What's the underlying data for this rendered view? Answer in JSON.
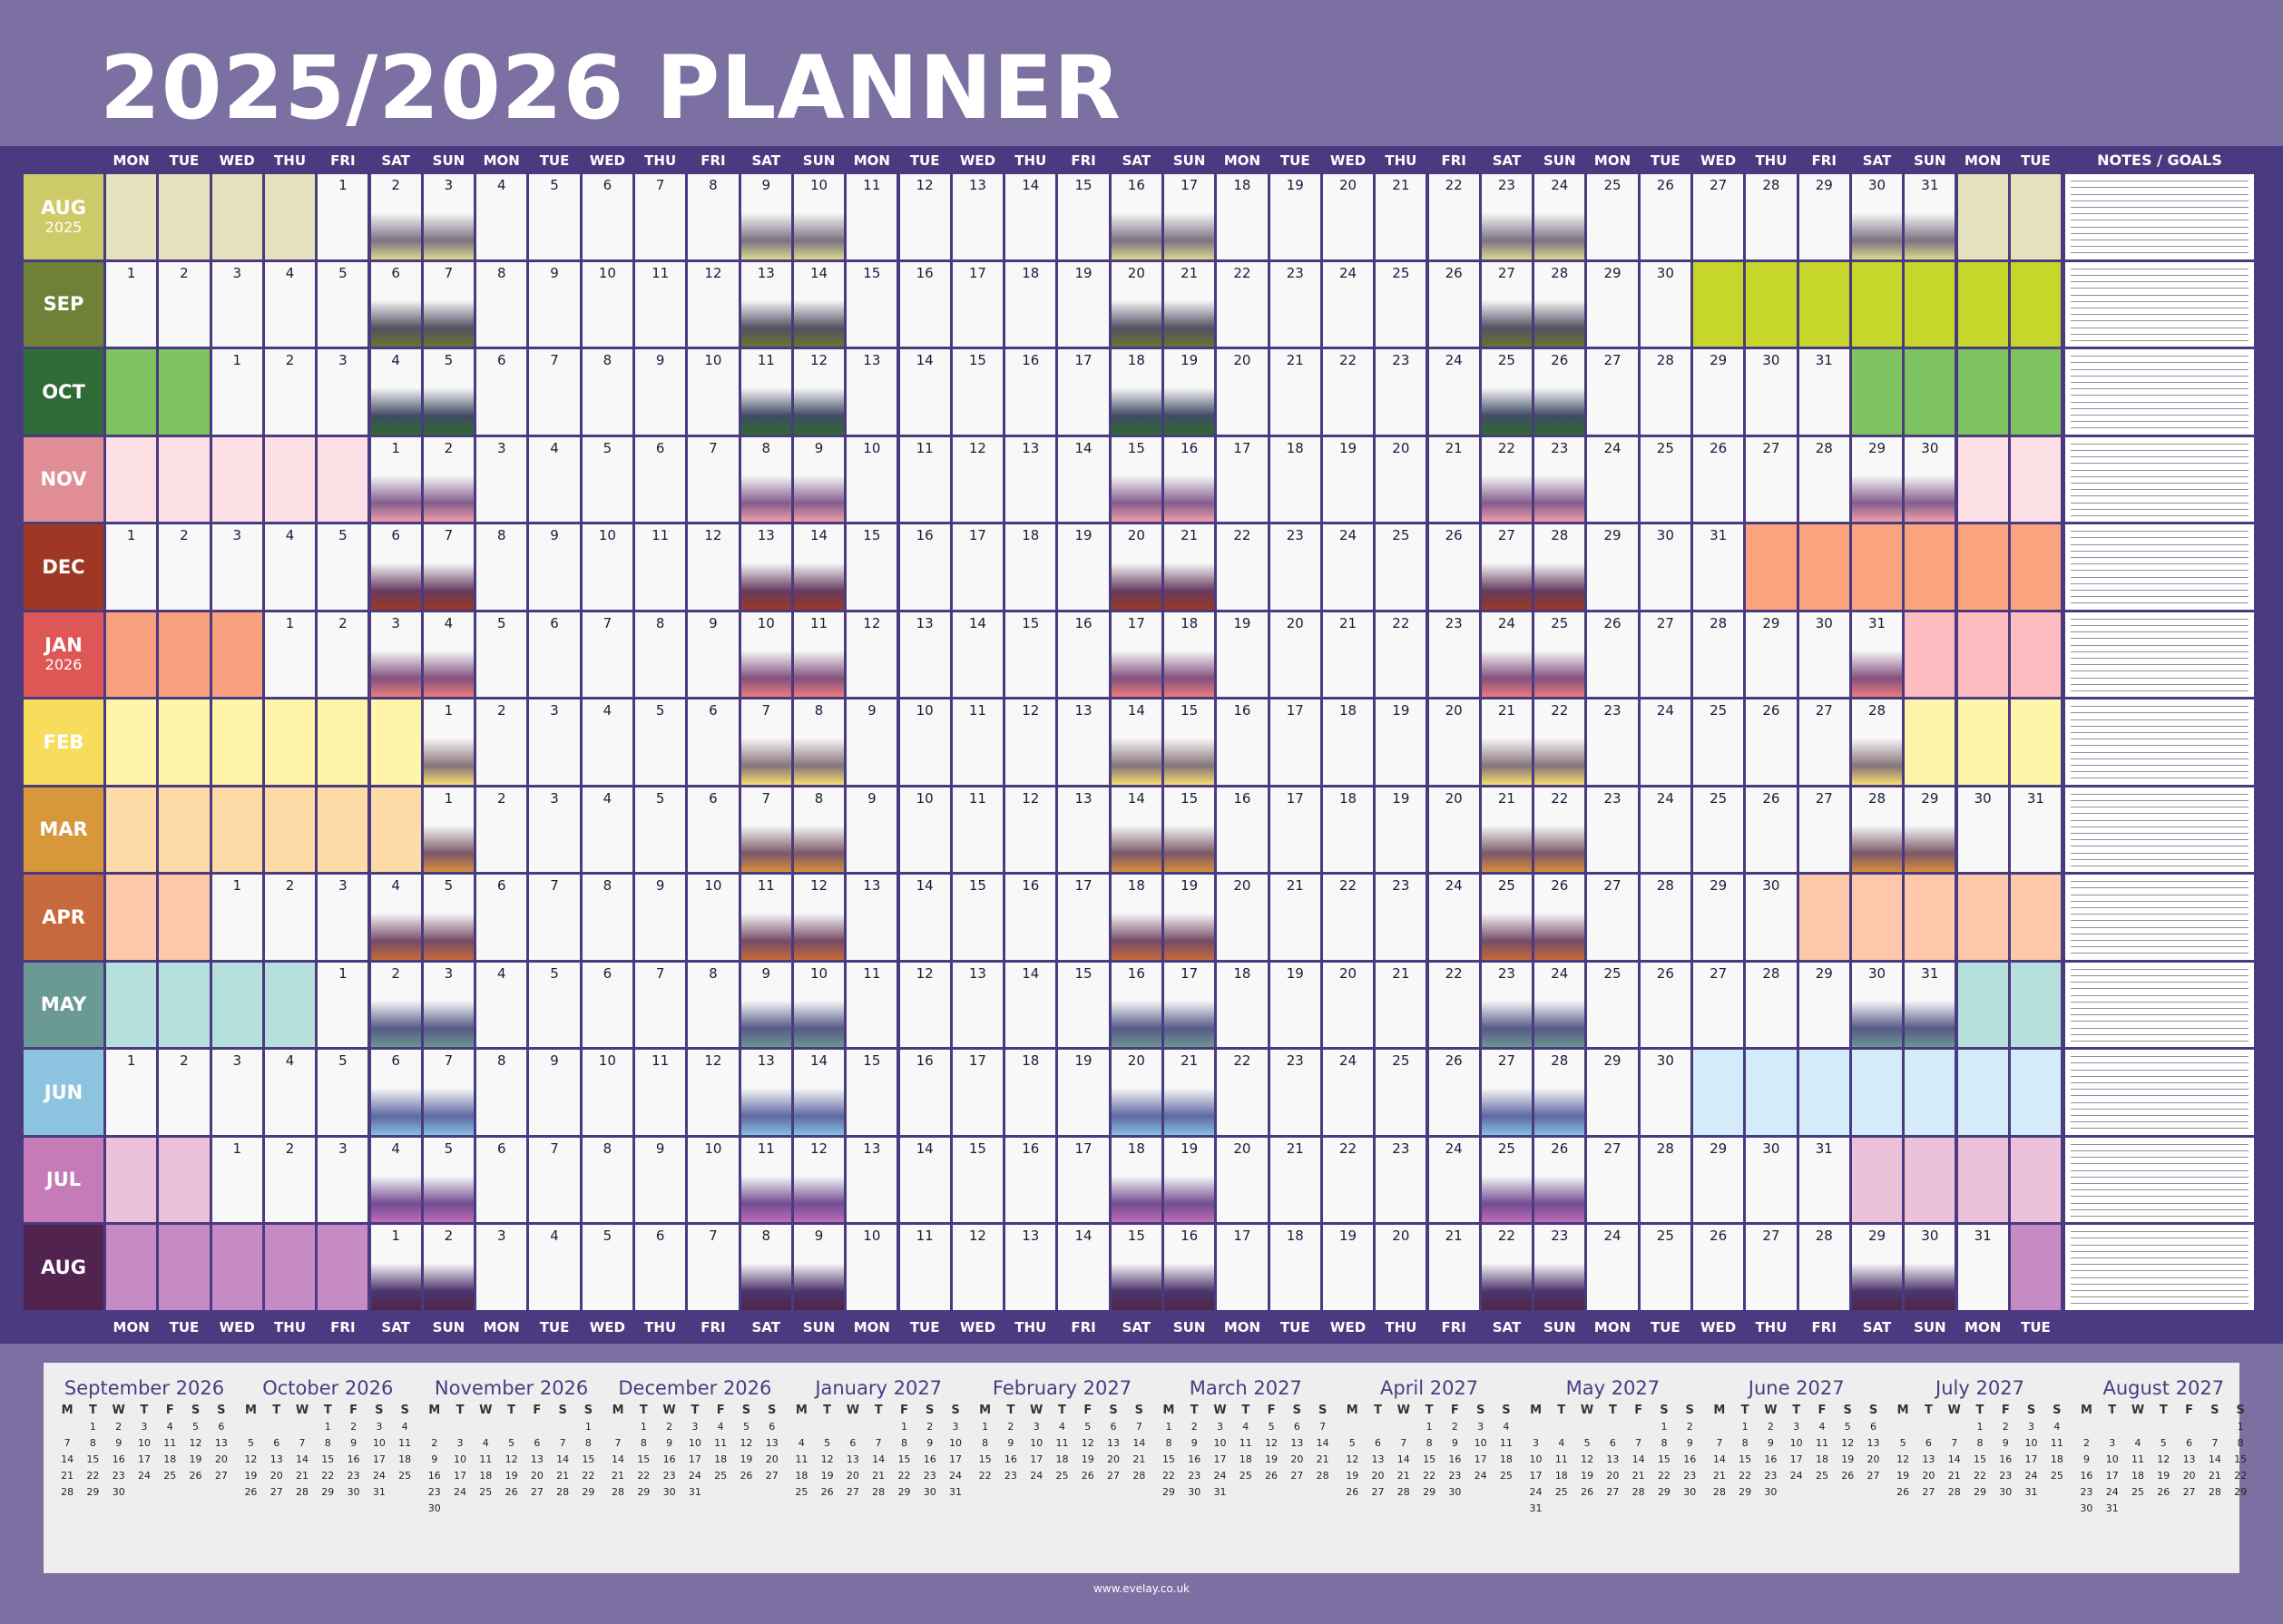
{
  "title": "2025/2026 PLANNER",
  "notes_header": "NOTES / GOALS",
  "footer": "www.evelay.co.uk",
  "day_headers": [
    "MON",
    "TUE",
    "WED",
    "THU",
    "FRI",
    "SAT",
    "SUN",
    "MON",
    "TUE",
    "WED",
    "THU",
    "FRI",
    "SAT",
    "SUN",
    "MON",
    "TUE",
    "WED",
    "THU",
    "FRI",
    "SAT",
    "SUN",
    "MON",
    "TUE",
    "WED",
    "THU",
    "FRI",
    "SAT",
    "SUN",
    "MON",
    "TUE",
    "WED",
    "THU",
    "FRI",
    "SAT",
    "SUN",
    "MON",
    "TUE"
  ],
  "months": [
    {
      "name": "AUG",
      "year": "2025",
      "start": 4,
      "days": 31,
      "color": "#cdca6a",
      "pale": "#e6e2bd",
      "shade": "#d9d98a",
      "text": "#ffffff"
    },
    {
      "name": "SEP",
      "year": "",
      "start": 0,
      "days": 30,
      "color": "#6f8037",
      "pale": "#c6d62a",
      "shade": "#66772e",
      "text": "#ffffff"
    },
    {
      "name": "OCT",
      "year": "",
      "start": 2,
      "days": 31,
      "color": "#2f6b36",
      "pale": "#7dc35f",
      "shade": "#2e6a2f",
      "text": "#ffffff"
    },
    {
      "name": "NOV",
      "year": "",
      "start": 5,
      "days": 30,
      "color": "#e08d95",
      "pale": "#fde0e5",
      "shade": "#ef9fa7",
      "text": "#ffffff"
    },
    {
      "name": "DEC",
      "year": "",
      "start": 0,
      "days": 31,
      "color": "#9e3825",
      "pale": "#f9a37f",
      "shade": "#9c3a22",
      "text": "#ffffff"
    },
    {
      "name": "JAN",
      "year": "2026",
      "start": 3,
      "days": 31,
      "color": "#dd5757",
      "pale": "#f9a17f",
      "pale2": "#fdbdc0",
      "shade": "#ec7b7b",
      "text": "#ffffff"
    },
    {
      "name": "FEB",
      "year": "",
      "start": 6,
      "days": 28,
      "color": "#f7dd5b",
      "pale": "#fef5a8",
      "shade": "#f6df6d",
      "text": "#ffffff"
    },
    {
      "name": "MAR",
      "year": "",
      "start": 6,
      "days": 31,
      "color": "#d9973c",
      "pale": "#fddba7",
      "shade": "#d78f3b",
      "text": "#ffffff"
    },
    {
      "name": "APR",
      "year": "",
      "start": 2,
      "days": 30,
      "color": "#c6693c",
      "pale": "#fec9aa",
      "shade": "#c66a38",
      "text": "#ffffff"
    },
    {
      "name": "MAY",
      "year": "",
      "start": 4,
      "days": 31,
      "color": "#6b9994",
      "pale": "#b6e0db",
      "shade": "#6c9691",
      "text": "#ffffff"
    },
    {
      "name": "JUN",
      "year": "",
      "start": 0,
      "days": 30,
      "color": "#8cc4df",
      "pale": "#d4ecf9",
      "shade": "#85bfdf",
      "text": "#ffffff"
    },
    {
      "name": "JUL",
      "year": "",
      "start": 2,
      "days": 31,
      "color": "#c57bb8",
      "pale": "#ecc1da",
      "shade": "#bd6db5",
      "text": "#ffffff"
    },
    {
      "name": "AUG",
      "year": "",
      "start": 5,
      "days": 31,
      "color": "#52234f",
      "pale": "#c68bc4",
      "shade": "#4f2647",
      "text": "#ffffff"
    }
  ],
  "mini_weekdays": [
    "M",
    "T",
    "W",
    "T",
    "F",
    "S",
    "S"
  ],
  "mini_calendars": [
    {
      "name": "September 2026",
      "start": 1,
      "days": 30
    },
    {
      "name": "October 2026",
      "start": 3,
      "days": 31
    },
    {
      "name": "November 2026",
      "start": 6,
      "days": 30
    },
    {
      "name": "December 2026",
      "start": 1,
      "days": 31
    },
    {
      "name": "January 2027",
      "start": 4,
      "days": 31
    },
    {
      "name": "February 2027",
      "start": 0,
      "days": 28
    },
    {
      "name": "March 2027",
      "start": 0,
      "days": 31
    },
    {
      "name": "April 2027",
      "start": 3,
      "days": 30
    },
    {
      "name": "May 2027",
      "start": 5,
      "days": 31
    },
    {
      "name": "June 2027",
      "start": 1,
      "days": 30
    },
    {
      "name": "July 2027",
      "start": 3,
      "days": 31
    },
    {
      "name": "August 2027",
      "start": 6,
      "days": 31
    }
  ]
}
